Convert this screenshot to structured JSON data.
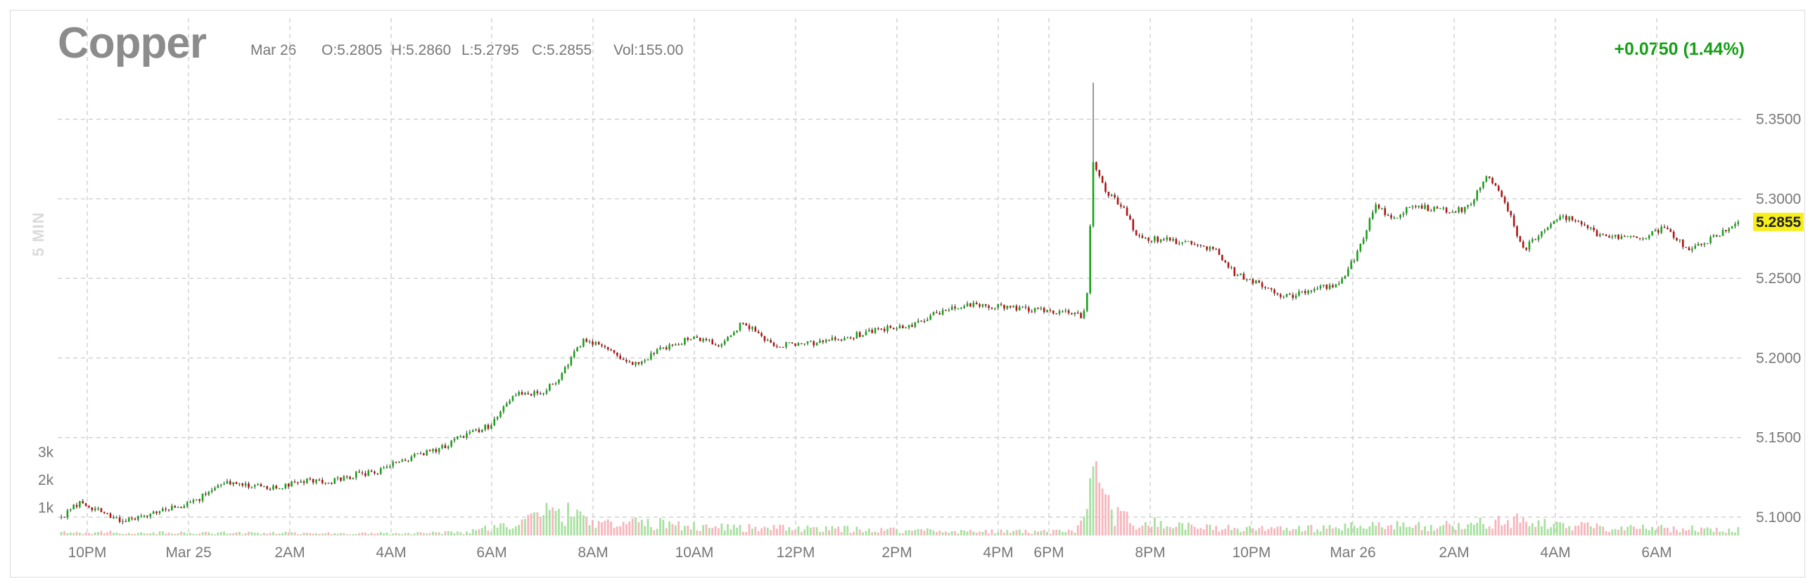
{
  "header": {
    "title": "Copper",
    "date": "Mar 26",
    "open": "O:5.2805",
    "high": "H:5.2860",
    "low": "L:5.2795",
    "close": "C:5.2855",
    "volume": "Vol:155.00",
    "change": "+0.0750 (1.44%)",
    "interval_label": "5 MIN"
  },
  "colors": {
    "up": "#17a317",
    "down": "#b31212",
    "vol_up": "#a8e0a0",
    "vol_down": "#f5b6bd",
    "last_price_box": "#f7ef1a",
    "change": "#16a016"
  },
  "chart_data": {
    "type": "candlestick",
    "title": "Copper",
    "interval": "5 MIN",
    "last_price": 5.2855,
    "last_price_label": "5.2855",
    "y_ticks": [
      5.35,
      5.3,
      5.25,
      5.2,
      5.15,
      5.1
    ],
    "y_tick_labels": [
      "5.3500",
      "5.3000",
      "5.2500",
      "5.2000",
      "5.1500",
      "5.1000"
    ],
    "ylim": [
      5.0885,
      5.379
    ],
    "volume_ticks": [
      3000,
      2000,
      1000
    ],
    "volume_tick_labels": [
      "3k",
      "2k",
      "1k"
    ],
    "volume_max": 3700,
    "x_tick_labels": [
      "10PM",
      "Mar 25",
      "2AM",
      "4AM",
      "6AM",
      "8AM",
      "10AM",
      "12PM",
      "2PM",
      "4PM",
      "6PM",
      "8PM",
      "10PM",
      "Mar 26",
      "2AM",
      "4AM",
      "6AM"
    ],
    "price_path": [
      [
        0,
        5.1
      ],
      [
        6,
        5.109
      ],
      [
        14,
        5.103
      ],
      [
        20,
        5.097
      ],
      [
        26,
        5.101
      ],
      [
        34,
        5.105
      ],
      [
        44,
        5.11
      ],
      [
        52,
        5.122
      ],
      [
        60,
        5.12
      ],
      [
        70,
        5.118
      ],
      [
        78,
        5.123
      ],
      [
        88,
        5.122
      ],
      [
        96,
        5.127
      ],
      [
        102,
        5.128
      ],
      [
        110,
        5.135
      ],
      [
        122,
        5.142
      ],
      [
        130,
        5.15
      ],
      [
        140,
        5.158
      ],
      [
        148,
        5.178
      ],
      [
        156,
        5.178
      ],
      [
        162,
        5.187
      ],
      [
        170,
        5.212
      ],
      [
        178,
        5.206
      ],
      [
        186,
        5.195
      ],
      [
        196,
        5.206
      ],
      [
        206,
        5.213
      ],
      [
        214,
        5.208
      ],
      [
        222,
        5.222
      ],
      [
        232,
        5.208
      ],
      [
        244,
        5.209
      ],
      [
        258,
        5.214
      ],
      [
        266,
        5.218
      ],
      [
        278,
        5.221
      ],
      [
        288,
        5.231
      ],
      [
        298,
        5.234
      ],
      [
        310,
        5.231
      ],
      [
        326,
        5.229
      ],
      [
        332,
        5.226
      ],
      [
        333,
        5.23
      ],
      [
        334,
        5.242
      ],
      [
        336,
        5.324
      ],
      [
        340,
        5.304
      ],
      [
        346,
        5.295
      ],
      [
        350,
        5.276
      ],
      [
        360,
        5.274
      ],
      [
        368,
        5.272
      ],
      [
        376,
        5.268
      ],
      [
        382,
        5.253
      ],
      [
        390,
        5.247
      ],
      [
        398,
        5.238
      ],
      [
        408,
        5.243
      ],
      [
        416,
        5.247
      ],
      [
        422,
        5.266
      ],
      [
        428,
        5.296
      ],
      [
        434,
        5.287
      ],
      [
        440,
        5.296
      ],
      [
        448,
        5.293
      ],
      [
        456,
        5.293
      ],
      [
        460,
        5.3
      ],
      [
        464,
        5.314
      ],
      [
        470,
        5.299
      ],
      [
        476,
        5.268
      ],
      [
        482,
        5.278
      ],
      [
        488,
        5.289
      ],
      [
        494,
        5.286
      ],
      [
        500,
        5.278
      ],
      [
        508,
        5.275
      ],
      [
        516,
        5.276
      ],
      [
        522,
        5.282
      ],
      [
        530,
        5.268
      ],
      [
        536,
        5.274
      ],
      [
        542,
        5.28
      ],
      [
        546,
        5.2855
      ]
    ],
    "volume_path": [
      [
        0,
        140
      ],
      [
        40,
        110
      ],
      [
        100,
        90
      ],
      [
        130,
        130
      ],
      [
        150,
        520
      ],
      [
        160,
        1050
      ],
      [
        170,
        760
      ],
      [
        180,
        560
      ],
      [
        200,
        440
      ],
      [
        230,
        300
      ],
      [
        260,
        250
      ],
      [
        300,
        170
      ],
      [
        330,
        160
      ],
      [
        334,
        760
      ],
      [
        336,
        2500
      ],
      [
        340,
        1150
      ],
      [
        350,
        560
      ],
      [
        370,
        330
      ],
      [
        400,
        260
      ],
      [
        430,
        400
      ],
      [
        460,
        420
      ],
      [
        470,
        700
      ],
      [
        480,
        470
      ],
      [
        500,
        360
      ],
      [
        520,
        300
      ],
      [
        546,
        240
      ]
    ]
  }
}
